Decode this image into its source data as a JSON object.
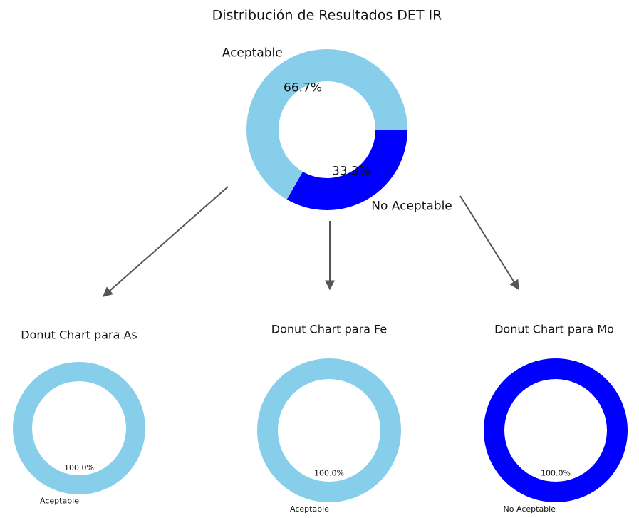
{
  "chart_data": [
    {
      "type": "donut",
      "title": "Distribución de Resultados DET IR",
      "categories": [
        "Aceptable",
        "No Aceptable"
      ],
      "values": [
        66.7,
        33.3
      ],
      "value_labels": [
        "66.7%",
        "33.3%"
      ],
      "colors": [
        "#87ceeb",
        "#0000ff"
      ]
    },
    {
      "type": "donut",
      "title": "Donut Chart para As",
      "categories": [
        "Aceptable"
      ],
      "values": [
        100
      ],
      "value_labels": [
        "100.0%"
      ],
      "colors": [
        "#87ceeb"
      ]
    },
    {
      "type": "donut",
      "title": "Donut Chart para Fe",
      "categories": [
        "Aceptable"
      ],
      "values": [
        100
      ],
      "value_labels": [
        "100.0%"
      ],
      "colors": [
        "#87ceeb"
      ]
    },
    {
      "type": "donut",
      "title": "Donut Chart para Mo",
      "categories": [
        "No Aceptable"
      ],
      "values": [
        100
      ],
      "value_labels": [
        "100.0%"
      ],
      "colors": [
        "#0000ff"
      ]
    }
  ]
}
